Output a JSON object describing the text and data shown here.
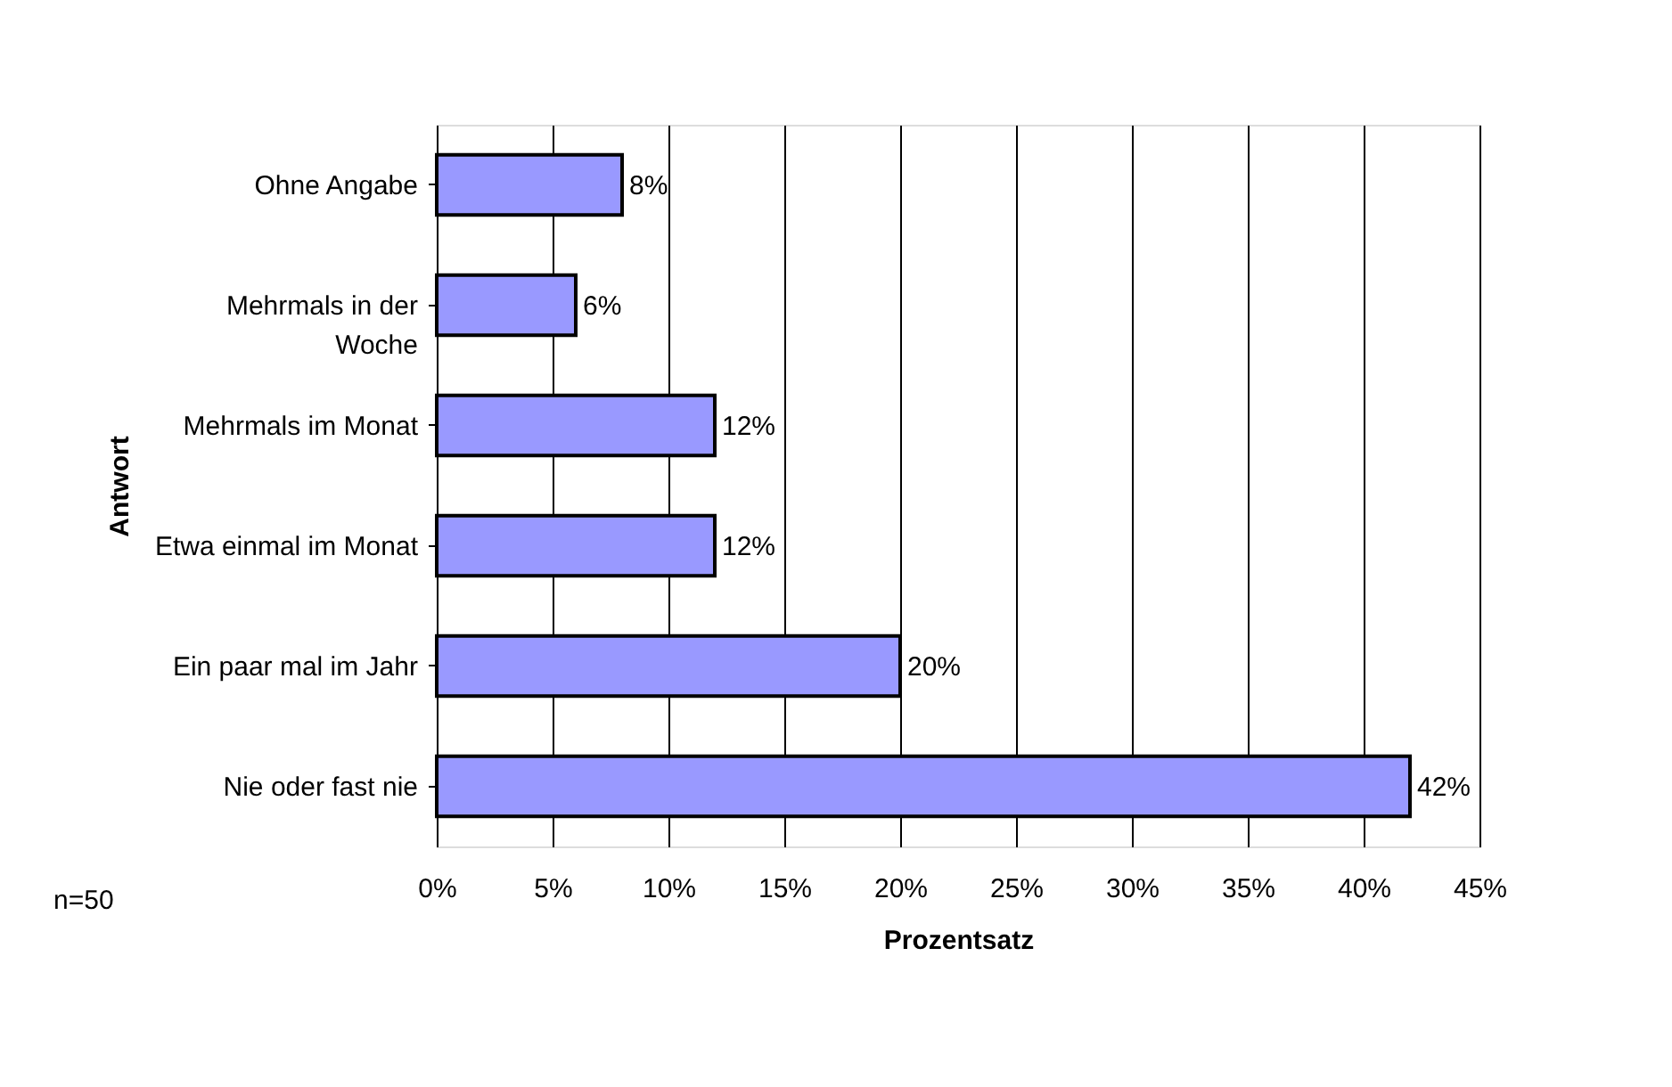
{
  "chart_data": {
    "type": "bar",
    "orientation": "horizontal",
    "xlabel": "Prozentsatz",
    "ylabel": "Antwort",
    "categories": [
      "Ohne Angabe",
      "Mehrmals in der Woche",
      "Mehrmals im Monat",
      "Etwa einmal im Monat",
      "Ein paar mal im Jahr",
      "Nie oder fast nie"
    ],
    "values": [
      8,
      6,
      12,
      12,
      20,
      42
    ],
    "value_labels": [
      "8%",
      "6%",
      "12%",
      "12%",
      "20%",
      "42%"
    ],
    "color": "#9999ff",
    "xlim": [
      0,
      45
    ],
    "xticks": [
      {
        "value": 0,
        "label": "0%"
      },
      {
        "value": 5,
        "label": "5%"
      },
      {
        "value": 10,
        "label": "10%"
      },
      {
        "value": 15,
        "label": "15%"
      },
      {
        "value": 20,
        "label": "20%"
      },
      {
        "value": 25,
        "label": "25%"
      },
      {
        "value": 30,
        "label": "30%"
      },
      {
        "value": 35,
        "label": "35%"
      },
      {
        "value": 40,
        "label": "40%"
      },
      {
        "value": 45,
        "label": "45%"
      }
    ],
    "grid": "x",
    "annotations": [
      "n=50"
    ]
  }
}
